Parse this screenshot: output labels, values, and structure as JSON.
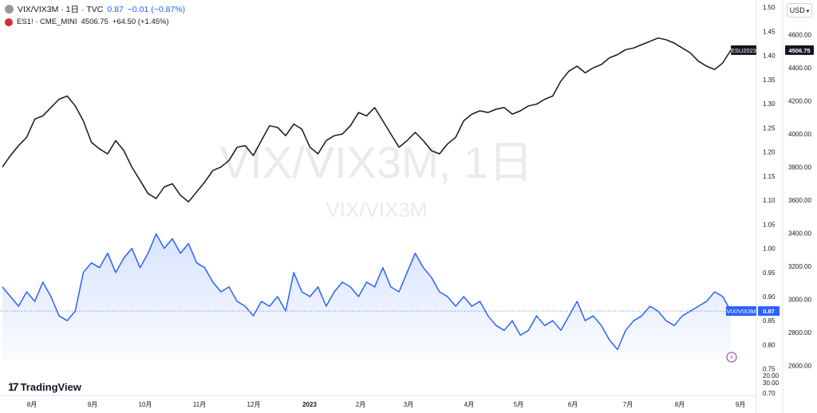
{
  "legend": {
    "main": {
      "icon": "vix-dot-icon",
      "label": "VIX/VIX3M · 1日 · TVC",
      "value": "0.87",
      "change": "−0.01 (−0.87%)",
      "color": "#2962ff",
      "icon_color": "#9598a1"
    },
    "compare": {
      "icon": "es-badge-icon",
      "label": "ES1! · CME_MINI",
      "value": "4506.75",
      "change": "+64.50 (+1.45%)",
      "color": "#131722",
      "icon_color": "#d32f2f"
    }
  },
  "currency_button": "USD",
  "brand": "TradingView",
  "chart_data": {
    "type": "line",
    "watermark": {
      "title": "VIX/VIX3M, 1日",
      "subtitle": "VIX/VIX3M"
    },
    "x_ticks": [
      "8月",
      "9月",
      "10月",
      "11月",
      "12月",
      "2023",
      "2月",
      "3月",
      "4月",
      "5月",
      "6月",
      "7月",
      "8月",
      "9月"
    ],
    "series": [
      {
        "name": "VIX/VIX3M",
        "color": "#2962ff",
        "last_label": "VIX/VIX3M",
        "last_value": "0.87",
        "axis": "left",
        "ylim": [
          0.695,
          1.515
        ],
        "ticks": [
          "1.50",
          "1.45",
          "1.40",
          "1.35",
          "1.30",
          "1.25",
          "1.20",
          "1.15",
          "1.10",
          "1.05",
          "1.00",
          "0.95",
          "0.90",
          "0.85",
          "0.80",
          "0.75",
          "0.70"
        ],
        "values": [
          0.92,
          0.9,
          0.88,
          0.91,
          0.89,
          0.93,
          0.9,
          0.86,
          0.85,
          0.87,
          0.95,
          0.97,
          0.96,
          0.99,
          0.95,
          0.98,
          1.0,
          0.96,
          0.99,
          1.03,
          1.0,
          1.02,
          0.99,
          1.01,
          0.97,
          0.96,
          0.93,
          0.91,
          0.92,
          0.89,
          0.88,
          0.86,
          0.89,
          0.88,
          0.9,
          0.87,
          0.95,
          0.91,
          0.9,
          0.92,
          0.88,
          0.91,
          0.93,
          0.92,
          0.9,
          0.93,
          0.92,
          0.96,
          0.92,
          0.91,
          0.95,
          0.99,
          0.96,
          0.94,
          0.91,
          0.9,
          0.88,
          0.9,
          0.88,
          0.89,
          0.86,
          0.84,
          0.83,
          0.85,
          0.82,
          0.83,
          0.86,
          0.84,
          0.85,
          0.83,
          0.86,
          0.89,
          0.85,
          0.86,
          0.84,
          0.81,
          0.79,
          0.83,
          0.85,
          0.86,
          0.88,
          0.87,
          0.85,
          0.84,
          0.86,
          0.87,
          0.88,
          0.89,
          0.91,
          0.9,
          0.87
        ]
      },
      {
        "name": "ES1!",
        "color": "#131722",
        "last_label": "ESU2023",
        "last_value": "4506.75",
        "axis": "right",
        "ylim": [
          2420,
          4810
        ],
        "ticks": [
          "4600.00",
          "4400.00",
          "4200.00",
          "4000.00",
          "3800.00",
          "3600.00",
          "3400.00",
          "3200.00",
          "3000.00",
          "2800.00",
          "2600.00"
        ],
        "values": [
          3800,
          3870,
          3930,
          3980,
          4090,
          4110,
          4160,
          4210,
          4230,
          4170,
          4080,
          3950,
          3910,
          3880,
          3960,
          3900,
          3800,
          3720,
          3640,
          3610,
          3680,
          3700,
          3630,
          3590,
          3650,
          3710,
          3780,
          3800,
          3840,
          3920,
          3930,
          3870,
          3960,
          4050,
          4040,
          3990,
          4060,
          4030,
          3920,
          3880,
          3960,
          3990,
          4000,
          4050,
          4130,
          4110,
          4160,
          4080,
          4000,
          3920,
          3960,
          4010,
          3960,
          3900,
          3880,
          3940,
          3980,
          4080,
          4120,
          4140,
          4130,
          4150,
          4160,
          4120,
          4140,
          4170,
          4180,
          4210,
          4230,
          4320,
          4380,
          4410,
          4370,
          4400,
          4420,
          4460,
          4480,
          4510,
          4520,
          4540,
          4560,
          4580,
          4570,
          4550,
          4520,
          4490,
          4440,
          4410,
          4390,
          4430,
          4506.75
        ]
      }
    ],
    "extra_axis_ticks": [
      "20.00",
      "30.00"
    ]
  }
}
